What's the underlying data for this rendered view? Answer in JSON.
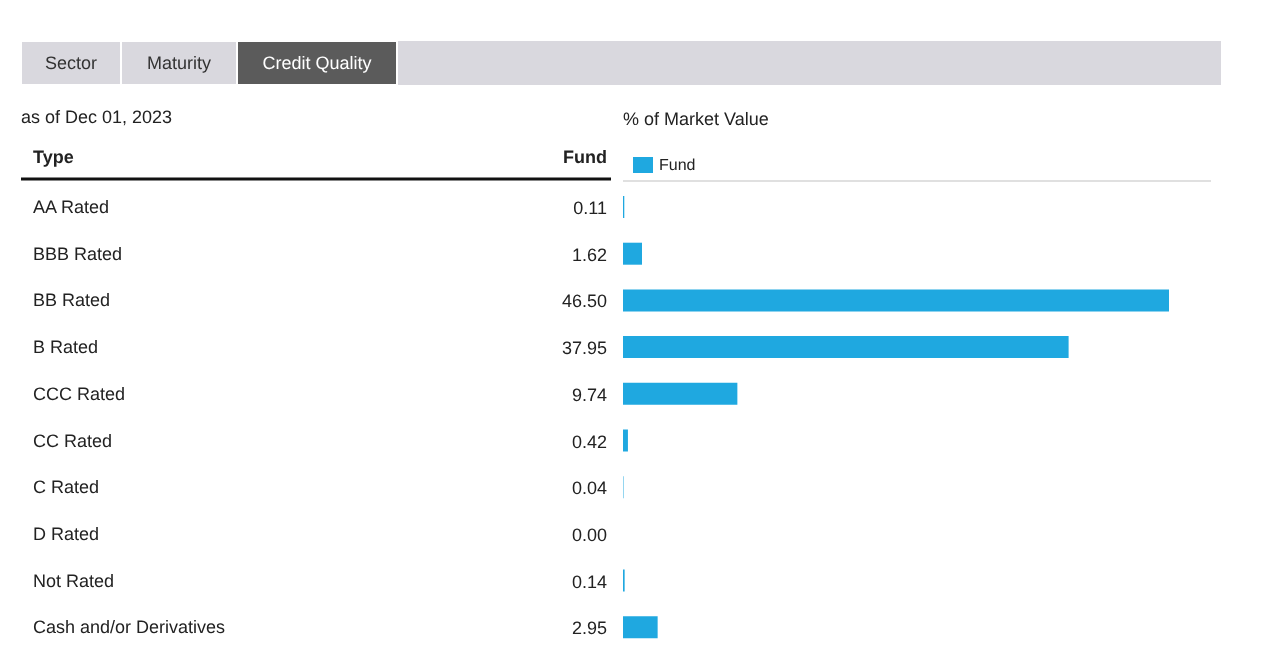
{
  "chart_data": {
    "type": "bar",
    "orientation": "horizontal",
    "title": "% of Market Value",
    "ylabel": "Type",
    "annotations": [
      "Sector",
      "Maturity",
      "Credit Quality",
      "as of Dec 01, 2023"
    ],
    "categories": [
      "AA Rated",
      "BBB Rated",
      "BB Rated",
      "B Rated",
      "CCC Rated",
      "CC Rated",
      "C Rated",
      "D Rated",
      "Not Rated",
      "Cash and/or Derivatives"
    ],
    "series": [
      {
        "name": "Fund",
        "color": "#1fa8e0",
        "values": [
          0.11,
          1.62,
          46.5,
          37.95,
          9.74,
          0.42,
          0.04,
          0.0,
          0.14,
          2.95
        ],
        "value_labels": [
          "0.11",
          "1.62",
          "46.50",
          "37.95",
          "9.74",
          "0.42",
          "0.04",
          "0.00",
          "0.14",
          "2.95"
        ]
      }
    ],
    "legend": "top left"
  }
}
